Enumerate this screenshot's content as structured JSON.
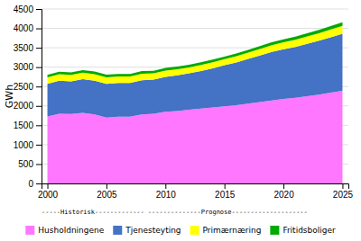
{
  "chart_data": {
    "type": "area",
    "stacked": true,
    "x": [
      2000,
      2001,
      2002,
      2003,
      2004,
      2005,
      2006,
      2007,
      2008,
      2009,
      2010,
      2011,
      2012,
      2013,
      2014,
      2015,
      2016,
      2017,
      2018,
      2019,
      2020,
      2021,
      2022,
      2023,
      2024,
      2025
    ],
    "series": [
      {
        "name": "Husholdningene",
        "color": "#FF77FF",
        "values": [
          1730,
          1800,
          1790,
          1820,
          1780,
          1700,
          1720,
          1720,
          1780,
          1800,
          1850,
          1870,
          1900,
          1930,
          1960,
          1990,
          2020,
          2060,
          2100,
          2140,
          2180,
          2210,
          2250,
          2290,
          2340,
          2390
        ]
      },
      {
        "name": "Tjenesteyting",
        "color": "#4472C4",
        "values": [
          840,
          850,
          840,
          870,
          870,
          870,
          870,
          870,
          880,
          880,
          900,
          920,
          940,
          970,
          1010,
          1060,
          1100,
          1150,
          1200,
          1250,
          1280,
          1310,
          1350,
          1390,
          1430,
          1470
        ]
      },
      {
        "name": "Primærnæring",
        "color": "#FFFF00",
        "values": [
          170,
          170,
          170,
          170,
          170,
          170,
          170,
          170,
          170,
          160,
          160,
          155,
          155,
          155,
          155,
          155,
          160,
          165,
          170,
          175,
          180,
          185,
          190,
          195,
          200,
          205
        ]
      },
      {
        "name": "Fritidsboliger",
        "color": "#00AA00",
        "values": [
          60,
          60,
          62,
          62,
          65,
          65,
          65,
          65,
          67,
          67,
          68,
          68,
          68,
          68,
          68,
          68,
          70,
          72,
          75,
          78,
          80,
          82,
          85,
          88,
          90,
          92
        ]
      }
    ],
    "y_label": "GWh",
    "xlim": [
      1999.5,
      2025.5
    ],
    "xticks": [
      2000,
      2005,
      2010,
      2015,
      2020,
      2025
    ],
    "ylim": [
      0,
      4500
    ],
    "yticks": [
      0,
      500,
      1000,
      1500,
      2000,
      2500,
      3000,
      3500,
      4000,
      4500
    ],
    "grid": true,
    "legend": "bottom",
    "annotations": [
      "-----Historisk-------------",
      "--------------Prognose--------------------"
    ]
  }
}
